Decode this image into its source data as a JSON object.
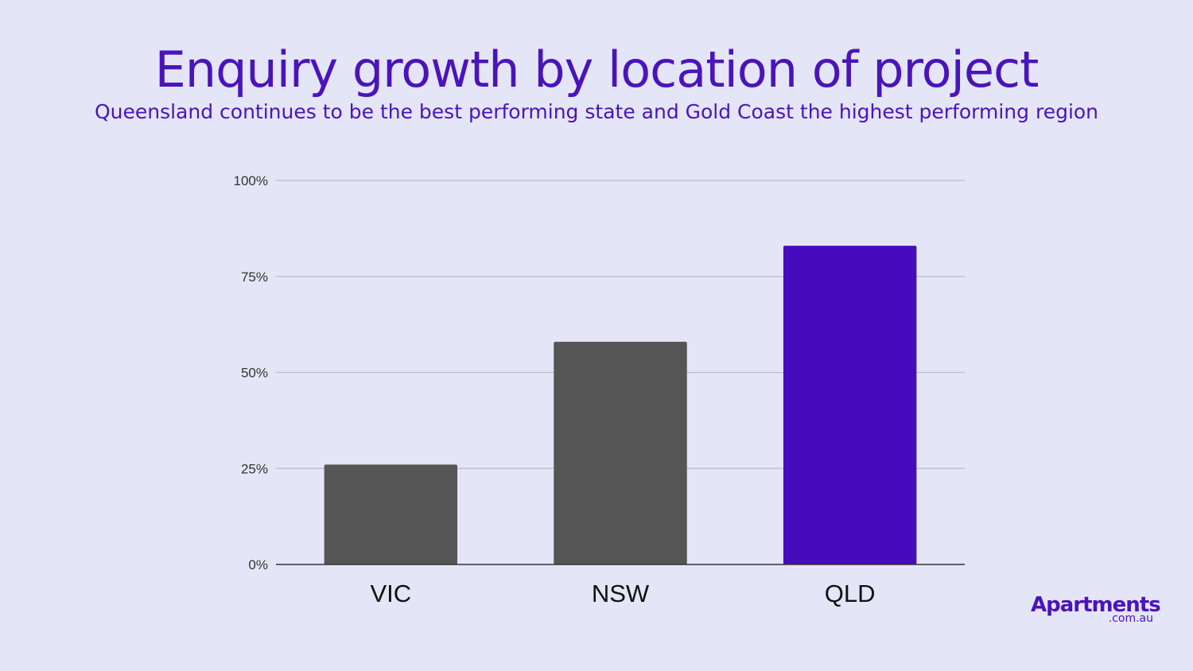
{
  "header": {
    "title": "Enquiry growth by location of project",
    "subtitle": "Queensland continues to be the best performing state and Gold Coast the highest performing region"
  },
  "brand": {
    "name": "Apartments",
    "domain": ".com.au"
  },
  "colors": {
    "background": "#e4e5f6",
    "accent": "#4a14bb",
    "bar_default": "#555555",
    "bar_highlight": "#460bbd",
    "gridline": "#bdbdbd",
    "axis": "#333333"
  },
  "chart_data": {
    "type": "bar",
    "title": "",
    "xlabel": "",
    "ylabel": "",
    "categories": [
      "VIC",
      "NSW",
      "QLD"
    ],
    "values": [
      26,
      58,
      83
    ],
    "highlight": "QLD",
    "ylim": [
      0,
      100
    ],
    "yticks": [
      0,
      25,
      50,
      75,
      100
    ],
    "ytick_labels": [
      "0%",
      "25%",
      "50%",
      "75%",
      "100%"
    ],
    "grid": true,
    "legend": "none"
  }
}
